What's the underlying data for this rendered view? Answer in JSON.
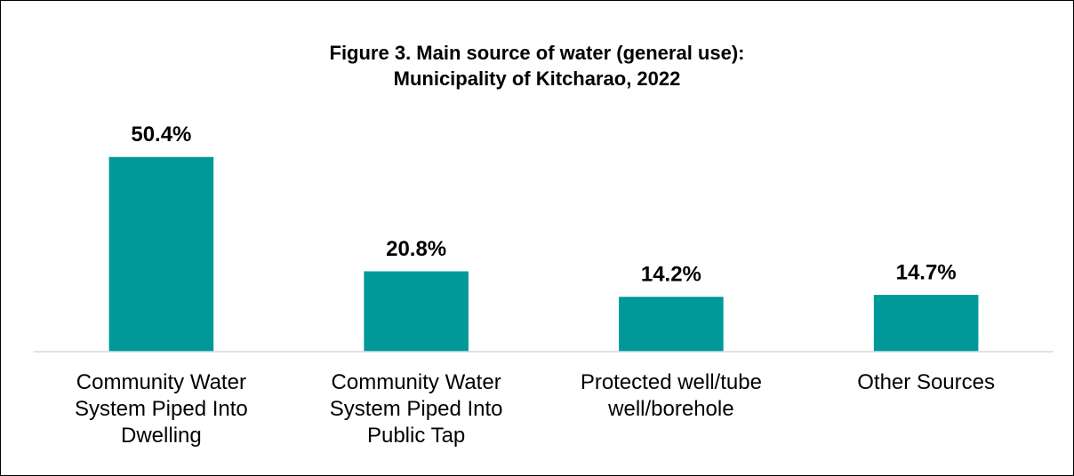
{
  "chart_data": {
    "type": "bar",
    "title": [
      "Figure 3. Main source of water (general use):",
      "Municipality of Kitcharao, 2022"
    ],
    "categories": [
      "Community Water System Piped Into Dwelling",
      "Community Water System Piped Into Public Tap",
      "Protected well/tube well/borehole",
      "Other Sources"
    ],
    "values": [
      50.4,
      20.8,
      14.2,
      14.7
    ],
    "value_labels": [
      "50.4%",
      "20.8%",
      "14.2%",
      "14.7%"
    ],
    "color": "#00999a",
    "ylim": [
      0,
      60
    ]
  }
}
